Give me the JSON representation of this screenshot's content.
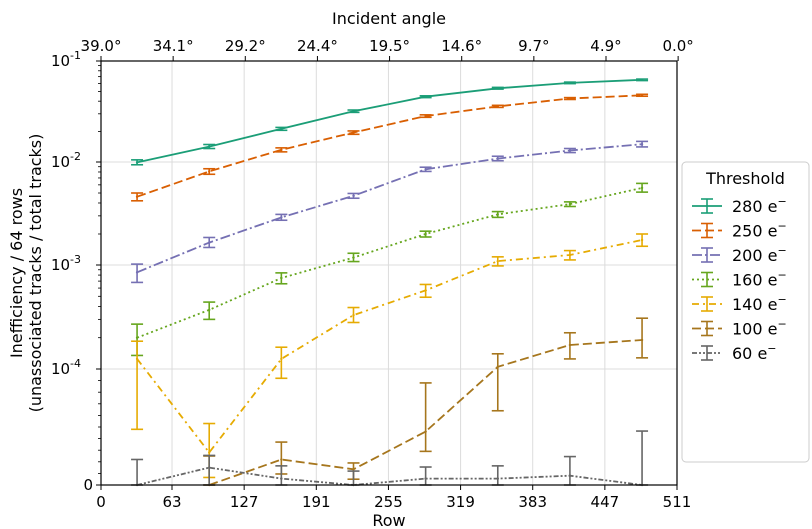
{
  "chart_data": {
    "type": "line",
    "title": "",
    "xlabel": "Row",
    "ylabel": [
      "Inefficiency / 64 rows",
      "(unassociated tracks / total tracks)"
    ],
    "top_xlabel": "Incident angle",
    "xlim": [
      0,
      511
    ],
    "x_ticks": [
      "0",
      "63",
      "127",
      "191",
      "255",
      "319",
      "383",
      "447",
      "511"
    ],
    "top_ticks": [
      "39.0°",
      "34.1°",
      "29.2°",
      "24.4°",
      "19.5°",
      "14.6°",
      "9.7°",
      "4.9°",
      "0.0°"
    ],
    "y_scale": "symlog",
    "ylim": [
      0,
      0.1
    ],
    "y_ticks": [
      {
        "label": "0",
        "value": 0
      },
      {
        "label": "10",
        "exp": "-4",
        "value": 0.0001
      },
      {
        "label": "10",
        "exp": "-3",
        "value": 0.001
      },
      {
        "label": "10",
        "exp": "-2",
        "value": 0.01
      },
      {
        "label": "10",
        "exp": "-1",
        "value": 0.1
      }
    ],
    "grid": true,
    "legend": {
      "title": "Threshold",
      "placement": "right"
    },
    "x": [
      32,
      96,
      160,
      224,
      288,
      352,
      416,
      480
    ],
    "series": [
      {
        "name": "280 e",
        "sup": "−",
        "color": "#1b9e77",
        "dash": "solid",
        "values": [
          0.0099,
          0.0142,
          0.0213,
          0.0318,
          0.0443,
          0.0537,
          0.0607,
          0.0651
        ],
        "err_low": [
          0.0094,
          0.0136,
          0.0206,
          0.031,
          0.0434,
          0.0527,
          0.0597,
          0.064
        ],
        "err_high": [
          0.0105,
          0.0149,
          0.022,
          0.0327,
          0.0452,
          0.0548,
          0.0618,
          0.0662
        ]
      },
      {
        "name": "250 e",
        "sup": "−",
        "color": "#d95f02",
        "dash": "dashed",
        "values": [
          0.0046,
          0.0081,
          0.0132,
          0.0196,
          0.0285,
          0.0355,
          0.0425,
          0.0458
        ],
        "err_low": [
          0.0042,
          0.0076,
          0.0126,
          0.0188,
          0.0277,
          0.0347,
          0.0416,
          0.0448
        ],
        "err_high": [
          0.005,
          0.0086,
          0.0138,
          0.0203,
          0.0293,
          0.0364,
          0.0434,
          0.0468
        ]
      },
      {
        "name": "200 e",
        "sup": "−",
        "color": "#7570b3",
        "dash": "dashdot",
        "values": [
          0.00085,
          0.00165,
          0.0029,
          0.0047,
          0.0085,
          0.0108,
          0.013,
          0.015
        ],
        "err_low": [
          0.00068,
          0.00148,
          0.00272,
          0.00445,
          0.0081,
          0.0103,
          0.0124,
          0.0141
        ],
        "err_high": [
          0.00102,
          0.00185,
          0.0031,
          0.00495,
          0.0089,
          0.0114,
          0.0136,
          0.016
        ]
      },
      {
        "name": "160 e",
        "sup": "−",
        "color": "#66a61e",
        "dash": "dotted",
        "values": [
          0.0002,
          0.00037,
          0.00075,
          0.00118,
          0.002,
          0.0031,
          0.0039,
          0.0056
        ],
        "err_low": [
          0.000135,
          0.0003,
          0.00066,
          0.00108,
          0.00187,
          0.0029,
          0.0037,
          0.0051
        ],
        "err_high": [
          0.00027,
          0.00044,
          0.00084,
          0.0013,
          0.00213,
          0.0033,
          0.0041,
          0.0062
        ]
      },
      {
        "name": "140 e",
        "sup": "−",
        "color": "#e6ab02",
        "dash": "dashdot2",
        "values": [
          0.000125,
          2.8e-05,
          0.000125,
          0.00033,
          0.00057,
          0.00109,
          0.00125,
          0.00175
        ],
        "err_low": [
          4.8e-05,
          6.5e-06,
          9.2e-05,
          0.00028,
          0.00049,
          0.00098,
          0.00112,
          0.00152
        ],
        "err_high": [
          0.000185,
          5.3e-05,
          0.000162,
          0.00039,
          0.00065,
          0.0012,
          0.00138,
          0.002
        ]
      },
      {
        "name": "100 e",
        "sup": "−",
        "color": "#a6761d",
        "dash": "longdash",
        "values": [
          null,
          0.0,
          2.2e-05,
          1.35e-05,
          4.6e-05,
          0.000105,
          0.00017,
          0.00019
        ],
        "err_low": [
          null,
          0.0,
          9.5e-06,
          5e-06,
          2.9e-05,
          6.4e-05,
          0.000125,
          0.000128
        ],
        "err_high": [
          null,
          2.5e-05,
          3.7e-05,
          1.9e-05,
          8.8e-05,
          0.00014,
          0.000223,
          0.000308
        ]
      },
      {
        "name": "60 e",
        "sup": "−",
        "color": "#666666",
        "dash": "dashdotdot",
        "values": [
          0.0,
          1.5e-05,
          5.5e-06,
          0.0,
          5.5e-06,
          5.5e-06,
          8e-06,
          0.0
        ],
        "err_low": [
          0.0,
          0.0,
          0.0,
          0.0,
          0.0,
          0.0,
          0.0,
          0.0
        ],
        "err_high": [
          2.2e-05,
          2.55e-05,
          1.65e-05,
          1.2e-05,
          1.55e-05,
          1.65e-05,
          2.45e-05,
          4.65e-05
        ]
      }
    ]
  }
}
